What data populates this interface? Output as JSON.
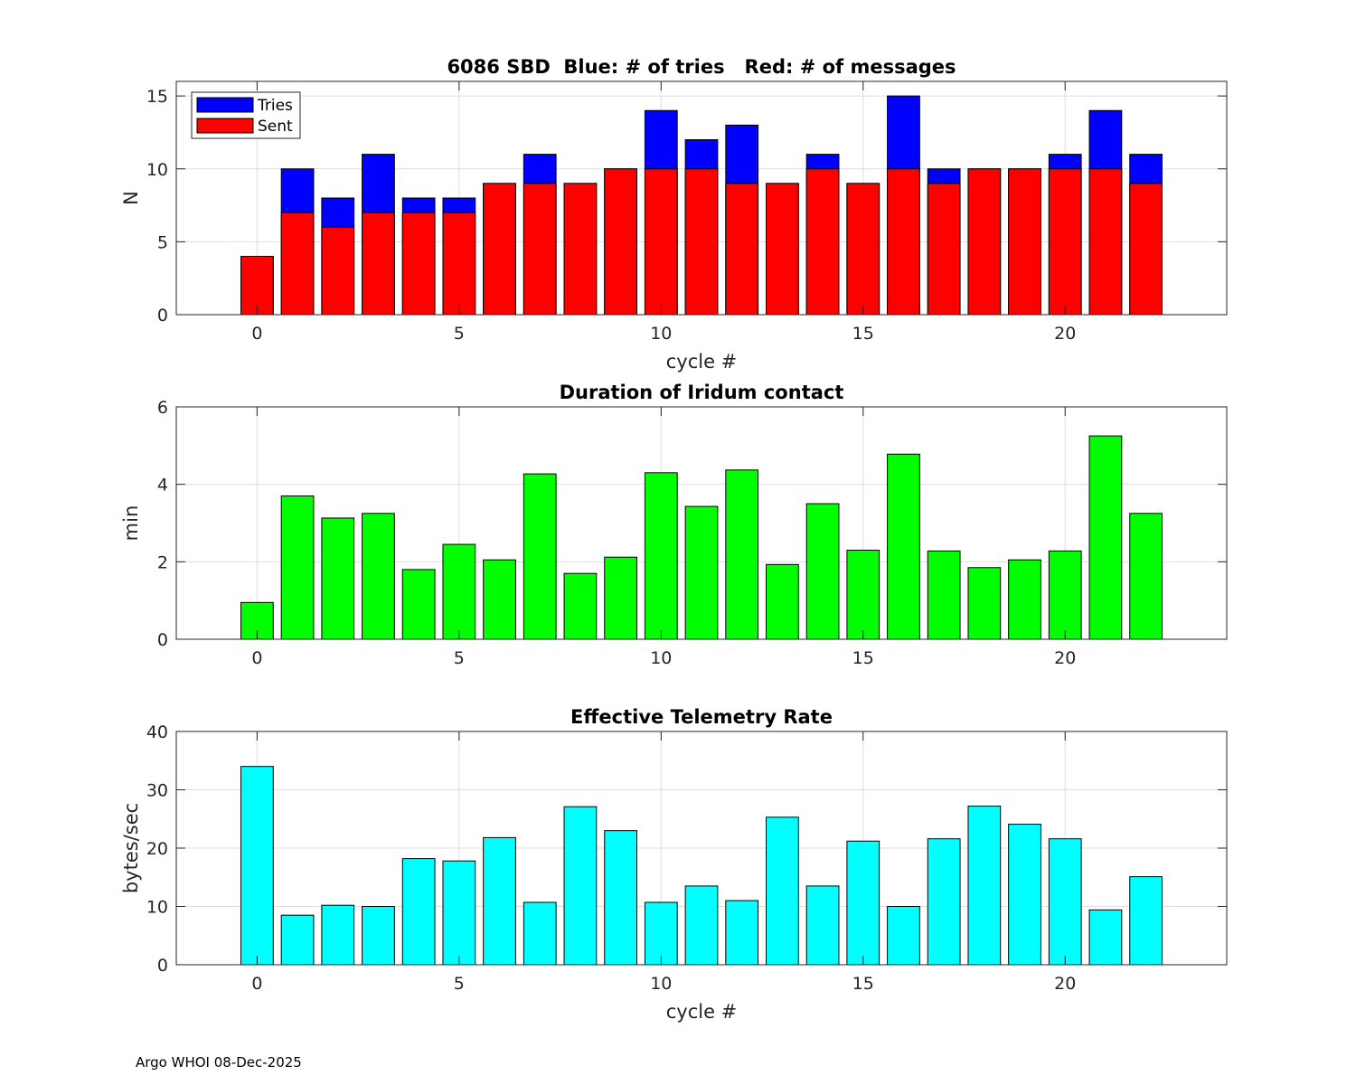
{
  "footer": "Argo WHOI 08-Dec-2025",
  "colors": {
    "tries": "#0000ff",
    "sent": "#ff0000",
    "duration": "#00ff00",
    "rate": "#00ffff",
    "grid": "#dddddd",
    "axis": "#262626"
  },
  "chart_data": [
    {
      "type": "bar",
      "title": "6086 SBD  Blue: # of tries   Red: # of messages",
      "xlabel": "cycle #",
      "ylabel": "N",
      "xlim": [
        -2,
        24
      ],
      "ylim": [
        0,
        16
      ],
      "xticks": [
        0,
        5,
        10,
        15,
        20
      ],
      "yticks": [
        0,
        5,
        10,
        15
      ],
      "grid": true,
      "legend": {
        "position": "top-left",
        "entries": [
          "Tries",
          "Sent"
        ]
      },
      "x": [
        0,
        1,
        2,
        3,
        4,
        5,
        6,
        7,
        8,
        9,
        10,
        11,
        12,
        13,
        14,
        15,
        16,
        17,
        18,
        19,
        20,
        21,
        22
      ],
      "series": [
        {
          "name": "Tries",
          "color": "#0000ff",
          "values": [
            4,
            10,
            8,
            11,
            8,
            8,
            9,
            11,
            9,
            10,
            14,
            12,
            13,
            9,
            11,
            9,
            15,
            10,
            10,
            10,
            11,
            14,
            11
          ]
        },
        {
          "name": "Sent",
          "color": "#ff0000",
          "values": [
            4,
            7,
            6,
            7,
            7,
            7,
            9,
            9,
            9,
            10,
            10,
            10,
            9,
            9,
            10,
            9,
            10,
            9,
            10,
            10,
            10,
            10,
            9
          ]
        }
      ]
    },
    {
      "type": "bar",
      "title": "Duration of Iridum contact",
      "xlabel": "",
      "ylabel": "min",
      "xlim": [
        -2,
        24
      ],
      "ylim": [
        0,
        6
      ],
      "xticks": [
        0,
        5,
        10,
        15,
        20
      ],
      "yticks": [
        0,
        2,
        4,
        6
      ],
      "grid": true,
      "x": [
        0,
        1,
        2,
        3,
        4,
        5,
        6,
        7,
        8,
        9,
        10,
        11,
        12,
        13,
        14,
        15,
        16,
        17,
        18,
        19,
        20,
        21,
        22
      ],
      "series": [
        {
          "name": "Duration",
          "color": "#00ff00",
          "values": [
            0.95,
            3.7,
            3.13,
            3.25,
            1.8,
            2.45,
            2.05,
            4.27,
            1.7,
            2.12,
            4.3,
            3.43,
            4.37,
            1.93,
            3.5,
            2.3,
            4.78,
            2.28,
            1.85,
            2.05,
            2.28,
            5.25,
            3.25
          ]
        }
      ]
    },
    {
      "type": "bar",
      "title": "Effective Telemetry Rate",
      "xlabel": "cycle #",
      "ylabel": "bytes/sec",
      "xlim": [
        -2,
        24
      ],
      "ylim": [
        0,
        40
      ],
      "xticks": [
        0,
        5,
        10,
        15,
        20
      ],
      "yticks": [
        0,
        10,
        20,
        30,
        40
      ],
      "grid": true,
      "x": [
        0,
        1,
        2,
        3,
        4,
        5,
        6,
        7,
        8,
        9,
        10,
        11,
        12,
        13,
        14,
        15,
        16,
        17,
        18,
        19,
        20,
        21,
        22
      ],
      "series": [
        {
          "name": "Rate",
          "color": "#00ffff",
          "values": [
            34,
            8.5,
            10.2,
            10,
            18.2,
            17.8,
            21.8,
            10.7,
            27.1,
            23,
            10.7,
            13.5,
            11,
            25.3,
            13.5,
            21.2,
            10,
            21.6,
            27.2,
            24.1,
            21.6,
            9.4,
            15.1
          ]
        }
      ]
    }
  ]
}
